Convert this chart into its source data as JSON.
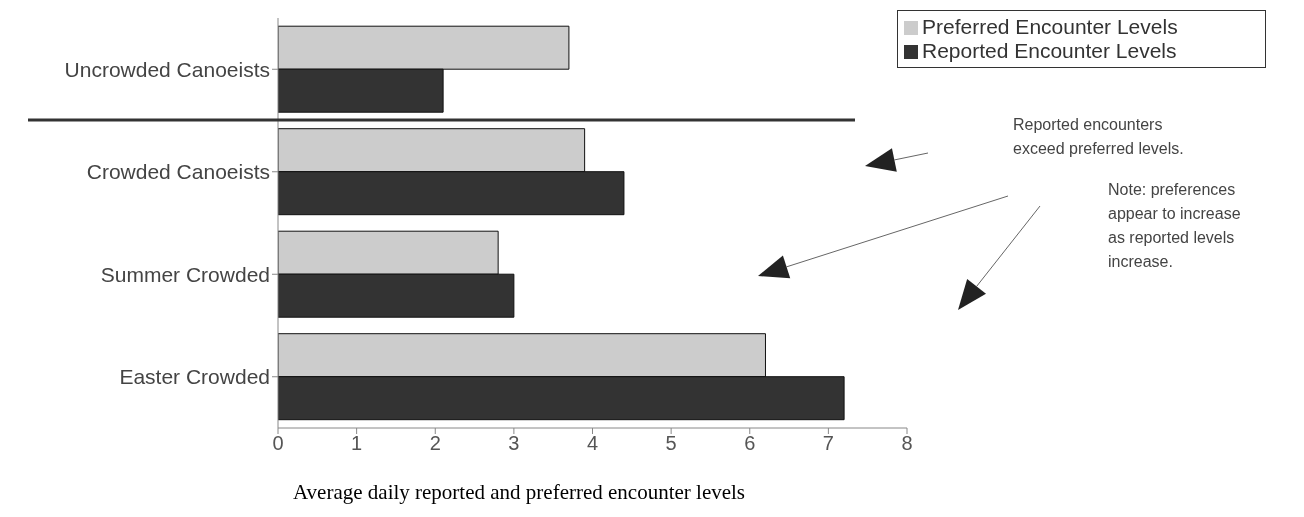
{
  "chart_data": {
    "type": "bar",
    "orientation": "horizontal",
    "title": "Average daily reported and preferred encounter levels",
    "categories": [
      "Uncrowded Canoeists",
      "Crowded Canoeists",
      "Summer Crowded",
      "Easter Crowded"
    ],
    "series": [
      {
        "name": "Preferred Encounter Levels",
        "color": "#cccccc",
        "values": [
          3.7,
          3.9,
          2.8,
          6.2
        ]
      },
      {
        "name": "Reported Encounter Levels",
        "color": "#333333",
        "values": [
          2.1,
          4.4,
          3.0,
          7.2
        ]
      }
    ],
    "xlim": [
      0,
      8
    ],
    "xticks": [
      0,
      1,
      2,
      3,
      4,
      5,
      6,
      7,
      8
    ],
    "legend": "top right",
    "annotations": [
      "Reported encounters exceed preferred levels.",
      "Note: preferences appear to increase as reported levels increase."
    ]
  }
}
